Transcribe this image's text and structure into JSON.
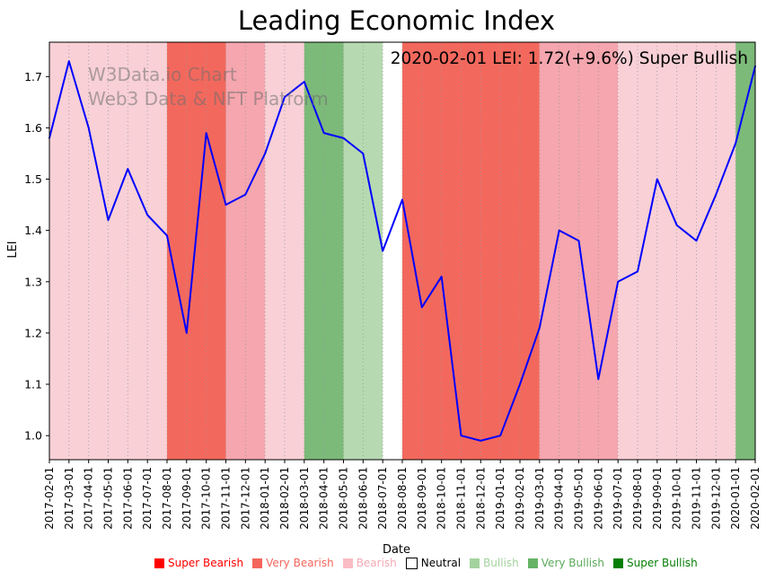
{
  "title": "Leading Economic Index",
  "watermark": {
    "line1": "W3Data.io Chart",
    "line2": "Web3 Data & NFT Platform"
  },
  "annotation": "2020-02-01 LEI: 1.72(+9.6%) Super Bullish",
  "chart_data": {
    "type": "line",
    "title": "Leading Economic Index",
    "xlabel": "Date",
    "ylabel": "LEI",
    "ylim": [
      0.953,
      1.767
    ],
    "yticks": [
      1.0,
      1.1,
      1.2,
      1.3,
      1.4,
      1.5,
      1.6,
      1.7
    ],
    "grid": "vertical dotted gridlines at each month, no horizontal gridlines",
    "legend_position": "bottom center",
    "line_color": "#0000ff",
    "categories": [
      "2017-02-01",
      "2017-03-01",
      "2017-04-01",
      "2017-05-01",
      "2017-06-01",
      "2017-07-01",
      "2017-08-01",
      "2017-09-01",
      "2017-10-01",
      "2017-11-01",
      "2017-12-01",
      "2018-01-01",
      "2018-02-01",
      "2018-03-01",
      "2018-04-01",
      "2018-05-01",
      "2018-06-01",
      "2018-07-01",
      "2018-08-01",
      "2018-09-01",
      "2018-10-01",
      "2018-11-01",
      "2018-12-01",
      "2019-01-01",
      "2019-02-01",
      "2019-03-01",
      "2019-04-01",
      "2019-05-01",
      "2019-06-01",
      "2019-07-01",
      "2019-08-01",
      "2019-09-01",
      "2019-10-01",
      "2019-11-01",
      "2019-12-01",
      "2020-01-01",
      "2020-02-01"
    ],
    "values": [
      1.58,
      1.73,
      1.6,
      1.42,
      1.52,
      1.43,
      1.39,
      1.2,
      1.59,
      1.45,
      1.47,
      1.55,
      1.66,
      1.69,
      1.59,
      1.58,
      1.55,
      1.36,
      1.46,
      1.25,
      1.31,
      1.0,
      0.99,
      1.0,
      1.1,
      1.21,
      1.4,
      1.38,
      1.11,
      1.3,
      1.32,
      1.5,
      1.41,
      1.38,
      1.47,
      1.57,
      1.72
    ],
    "bands": [
      {
        "start": 0,
        "end": 6,
        "sentiment": "Bearish",
        "color": "#f8d0d6"
      },
      {
        "start": 6,
        "end": 9,
        "sentiment": "Very Bearish",
        "color": "#f3685d"
      },
      {
        "start": 9,
        "end": 11,
        "sentiment": "Bearish",
        "color": "#f5a6ae"
      },
      {
        "start": 11,
        "end": 13,
        "sentiment": "Bearish",
        "color": "#f8d0d6"
      },
      {
        "start": 13,
        "end": 15,
        "sentiment": "Very Bullish",
        "color": "#7cba79"
      },
      {
        "start": 15,
        "end": 17,
        "sentiment": "Bullish",
        "color": "#b6d9b1"
      },
      {
        "start": 17,
        "end": 18,
        "sentiment": "Neutral",
        "color": "#ffffff"
      },
      {
        "start": 18,
        "end": 25,
        "sentiment": "Very Bearish",
        "color": "#f3685d"
      },
      {
        "start": 25,
        "end": 29,
        "sentiment": "Bearish",
        "color": "#f5a6ae"
      },
      {
        "start": 29,
        "end": 35,
        "sentiment": "Bearish",
        "color": "#f8d0d6"
      },
      {
        "start": 35,
        "end": 36,
        "sentiment": "Very Bullish",
        "color": "#7cba79"
      }
    ]
  },
  "legend": [
    {
      "label": "Super Bearish",
      "color": "#ff0000",
      "text_color": "#ff0000",
      "border": false
    },
    {
      "label": "Very Bearish",
      "color": "#f4665b",
      "text_color": "#f4665b",
      "border": false
    },
    {
      "label": "Bearish",
      "color": "#f9bcc4",
      "text_color": "#f4aab4",
      "border": false
    },
    {
      "label": "Neutral",
      "color": "#ffffff",
      "text_color": "#000000",
      "border": true
    },
    {
      "label": "Bullish",
      "color": "#a3d29e",
      "text_color": "#a3d29e",
      "border": false
    },
    {
      "label": "Very Bullish",
      "color": "#67b366",
      "text_color": "#5aa95a",
      "border": false
    },
    {
      "label": "Super Bullish",
      "color": "#047e04",
      "text_color": "#047e04",
      "border": false
    }
  ]
}
